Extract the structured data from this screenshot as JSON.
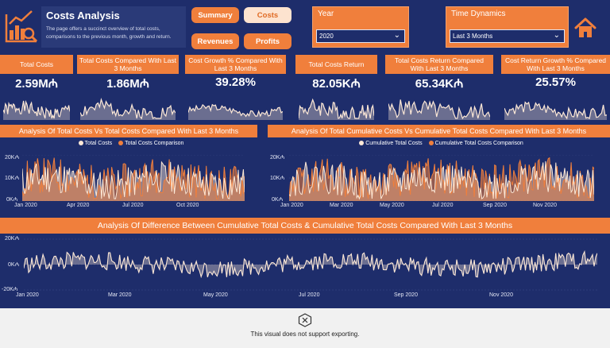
{
  "header": {
    "title": "Costs Analysis",
    "description": "The page offers a succinct overview of total costs, comparisons to the previous month, growth and return."
  },
  "nav": {
    "summary": "Summary",
    "costs": "Costs",
    "revenues": "Revenues",
    "profits": "Profits"
  },
  "slicers": {
    "year": {
      "label": "Year",
      "value": "2020"
    },
    "time": {
      "label": "Time Dynamics",
      "value": "Last 3 Months"
    }
  },
  "kpis": [
    {
      "title": "Total Costs",
      "value": "2.59M₼"
    },
    {
      "title": "Total Costs Compared With Last 3 Months",
      "value": "1.86M₼"
    },
    {
      "title": "Cost Growth % Compared With Last 3 Months",
      "value": "39.28%"
    },
    {
      "title": "Total Costs Return",
      "value": "82.05K₼"
    },
    {
      "title": "Total Costs Return Compared With Last 3 Months",
      "value": "65.34K₼"
    },
    {
      "title": "Cost Return Growth % Compared With Last 3 Months",
      "value": "25.57%"
    }
  ],
  "chart1": {
    "title": "Analysis Of Total Costs Vs Total Costs Compared With Last 3 Months",
    "legend": [
      "Total Costs",
      "Total Costs Comparison"
    ],
    "yticks": [
      "20K₼",
      "10K₼",
      "0K₼"
    ],
    "xticks": [
      "Jan 2020",
      "Apr 2020",
      "Jul 2020",
      "Oct 2020"
    ]
  },
  "chart2": {
    "title": "Analysis Of Total Cumulative Costs Vs Cumulative Total Costs Compared With Last 3 Months",
    "legend": [
      "Cumulative Total Costs",
      "Cumulative Total Costs Comparison"
    ],
    "yticks": [
      "20K₼",
      "10K₼",
      "0K₼"
    ],
    "xticks": [
      "Jan 2020",
      "Mar 2020",
      "May 2020",
      "Jul 2020",
      "Sep 2020",
      "Nov 2020"
    ]
  },
  "chart3": {
    "title": "Analysis Of Difference Between Cumulative Total Costs & Cumulative Total Costs Compared With Last 3 Months",
    "yticks": [
      "20K₼",
      "0K₼",
      "-20K₼"
    ],
    "xticks": [
      "Jan 2020",
      "Mar 2020",
      "May 2020",
      "Jul 2020",
      "Sep 2020",
      "Nov 2020"
    ]
  },
  "footer": {
    "message": "This visual does not support exporting."
  },
  "colors": {
    "navy": "#1e2d6b",
    "orange": "#f07f3c",
    "cream": "#fde3cf",
    "line": "#fce8d6"
  },
  "icons": {
    "logo": "chart-analysis-icon",
    "home": "home-icon",
    "error": "error-x-icon"
  }
}
